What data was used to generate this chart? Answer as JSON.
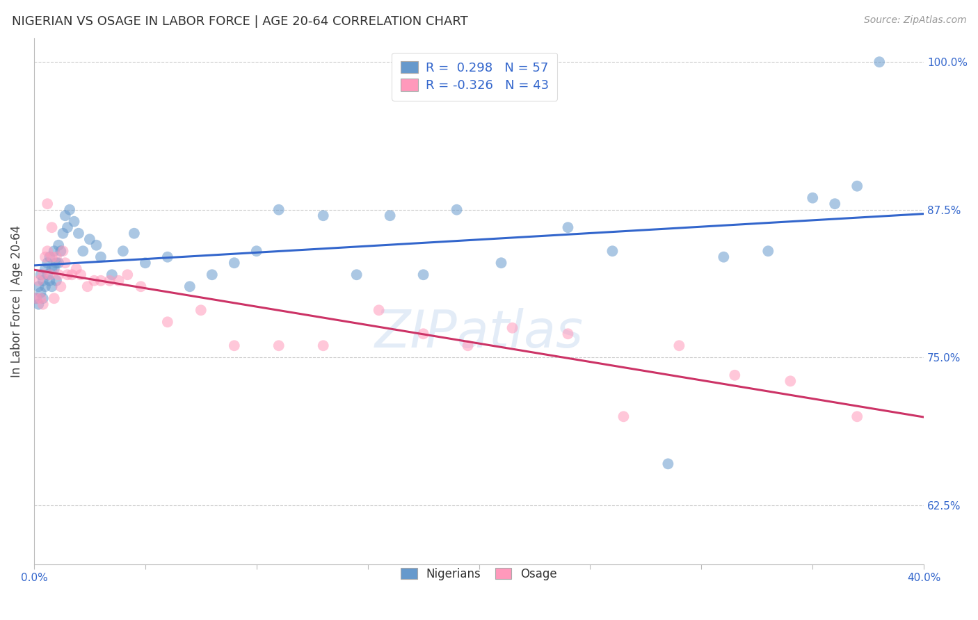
{
  "title": "NIGERIAN VS OSAGE IN LABOR FORCE | AGE 20-64 CORRELATION CHART",
  "source": "Source: ZipAtlas.com",
  "ylabel": "In Labor Force | Age 20-64",
  "xlim": [
    0.0,
    0.4
  ],
  "ylim": [
    0.575,
    1.02
  ],
  "xticks": [
    0.0,
    0.05,
    0.1,
    0.15,
    0.2,
    0.25,
    0.3,
    0.35,
    0.4
  ],
  "yticks": [
    0.625,
    0.75,
    0.875,
    1.0
  ],
  "ytick_labels": [
    "62.5%",
    "75.0%",
    "87.5%",
    "100.0%"
  ],
  "xtick_labels": [
    "0.0%",
    "",
    "",
    "",
    "",
    "",
    "",
    "",
    "40.0%"
  ],
  "blue_color": "#6699cc",
  "pink_color": "#ff99bb",
  "blue_line_color": "#3366cc",
  "pink_line_color": "#cc3366",
  "legend_R_blue": " 0.298",
  "legend_N_blue": "57",
  "legend_R_pink": "-0.326",
  "legend_N_pink": "43",
  "watermark": "ZIPatlas",
  "nigerian_x": [
    0.001,
    0.002,
    0.002,
    0.003,
    0.003,
    0.004,
    0.004,
    0.005,
    0.005,
    0.006,
    0.006,
    0.007,
    0.007,
    0.008,
    0.008,
    0.009,
    0.009,
    0.01,
    0.01,
    0.011,
    0.011,
    0.012,
    0.013,
    0.014,
    0.015,
    0.016,
    0.018,
    0.02,
    0.022,
    0.025,
    0.028,
    0.03,
    0.035,
    0.04,
    0.045,
    0.05,
    0.06,
    0.07,
    0.08,
    0.09,
    0.1,
    0.11,
    0.13,
    0.145,
    0.16,
    0.175,
    0.19,
    0.21,
    0.24,
    0.26,
    0.285,
    0.31,
    0.33,
    0.35,
    0.36,
    0.37,
    0.38
  ],
  "nigerian_y": [
    0.8,
    0.81,
    0.795,
    0.82,
    0.805,
    0.815,
    0.8,
    0.825,
    0.81,
    0.83,
    0.82,
    0.835,
    0.815,
    0.825,
    0.81,
    0.84,
    0.825,
    0.83,
    0.815,
    0.845,
    0.83,
    0.84,
    0.855,
    0.87,
    0.86,
    0.875,
    0.865,
    0.855,
    0.84,
    0.85,
    0.845,
    0.835,
    0.82,
    0.84,
    0.855,
    0.83,
    0.835,
    0.81,
    0.82,
    0.83,
    0.84,
    0.875,
    0.87,
    0.82,
    0.87,
    0.82,
    0.875,
    0.83,
    0.86,
    0.84,
    0.66,
    0.835,
    0.84,
    0.885,
    0.88,
    0.895,
    1.0
  ],
  "osage_x": [
    0.001,
    0.002,
    0.003,
    0.004,
    0.004,
    0.005,
    0.006,
    0.006,
    0.007,
    0.008,
    0.008,
    0.009,
    0.01,
    0.011,
    0.012,
    0.013,
    0.014,
    0.015,
    0.017,
    0.019,
    0.021,
    0.024,
    0.027,
    0.03,
    0.034,
    0.038,
    0.042,
    0.048,
    0.06,
    0.075,
    0.09,
    0.11,
    0.13,
    0.155,
    0.175,
    0.195,
    0.215,
    0.24,
    0.265,
    0.29,
    0.315,
    0.34,
    0.37
  ],
  "osage_y": [
    0.8,
    0.815,
    0.8,
    0.82,
    0.795,
    0.835,
    0.84,
    0.88,
    0.82,
    0.835,
    0.86,
    0.8,
    0.835,
    0.82,
    0.81,
    0.84,
    0.83,
    0.82,
    0.82,
    0.825,
    0.82,
    0.81,
    0.815,
    0.815,
    0.815,
    0.815,
    0.82,
    0.81,
    0.78,
    0.79,
    0.76,
    0.76,
    0.76,
    0.79,
    0.77,
    0.76,
    0.775,
    0.77,
    0.7,
    0.76,
    0.735,
    0.73,
    0.7
  ]
}
